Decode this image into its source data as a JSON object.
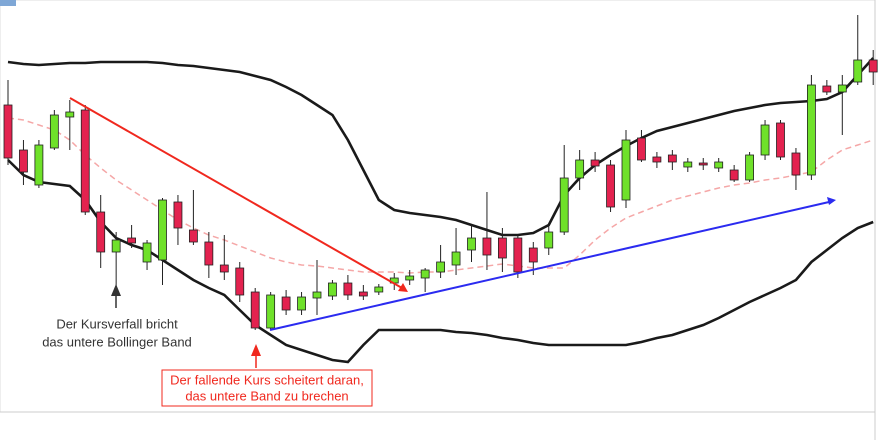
{
  "chart_data": {
    "type": "candlestick",
    "ylim": [
      0,
      430
    ],
    "open": [
      325,
      280,
      245,
      282,
      313,
      320,
      218,
      178,
      192,
      168,
      170,
      228,
      200,
      188,
      165,
      162,
      138,
      102,
      133,
      120,
      132,
      134,
      147,
      138,
      138,
      147,
      150,
      152,
      158,
      165,
      180,
      192,
      192,
      192,
      182,
      182,
      198,
      252,
      270,
      265,
      230,
      292,
      273,
      275,
      263,
      267,
      262,
      260,
      250,
      275,
      307,
      277,
      255,
      344,
      338,
      348,
      370
    ],
    "high": [
      350,
      290,
      290,
      320,
      330,
      325,
      235,
      198,
      205,
      190,
      232,
      235,
      240,
      198,
      195,
      168,
      142,
      138,
      140,
      138,
      170,
      150,
      155,
      145,
      146,
      157,
      160,
      162,
      185,
      202,
      205,
      238,
      202,
      195,
      188,
      205,
      285,
      280,
      278,
      270,
      300,
      300,
      278,
      280,
      272,
      272,
      272,
      265,
      278,
      310,
      310,
      282,
      355,
      350,
      355,
      415,
      380
    ],
    "low": [
      265,
      245,
      242,
      280,
      280,
      215,
      162,
      140,
      182,
      160,
      145,
      185,
      185,
      152,
      150,
      128,
      100,
      100,
      115,
      115,
      115,
      130,
      130,
      130,
      135,
      140,
      145,
      138,
      152,
      155,
      168,
      160,
      158,
      152,
      155,
      175,
      195,
      240,
      258,
      218,
      222,
      268,
      262,
      260,
      258,
      260,
      258,
      248,
      248,
      270,
      270,
      240,
      250,
      335,
      295,
      345,
      345
    ],
    "close": [
      272,
      258,
      285,
      315,
      318,
      218,
      178,
      190,
      187,
      187,
      230,
      202,
      188,
      165,
      158,
      135,
      102,
      135,
      120,
      133,
      138,
      147,
      135,
      134,
      143,
      152,
      154,
      160,
      168,
      178,
      192,
      175,
      172,
      158,
      168,
      198,
      252,
      270,
      264,
      223,
      290,
      270,
      268,
      268,
      268,
      265,
      268,
      250,
      275,
      305,
      273,
      255,
      345,
      338,
      345,
      370,
      358
    ],
    "up_color": "#6fe12a",
    "down_color": "#e3224f",
    "series": [
      {
        "name": "upper",
        "color": "#1a1a1a",
        "values": [
          368,
          366,
          365,
          366,
          367,
          367,
          368,
          368,
          368,
          368,
          367,
          365,
          364,
          362,
          360,
          358,
          354,
          350,
          343,
          335,
          325,
          315,
          290,
          260,
          230,
          220,
          217,
          215,
          213,
          210,
          205,
          200,
          195,
          195,
          197,
          205,
          235,
          252,
          265,
          275,
          284,
          292,
          299,
          303,
          307,
          311,
          315,
          319,
          322,
          325,
          327,
          328,
          329,
          331,
          338,
          355,
          372
        ]
      },
      {
        "name": "middle",
        "color": "#f5a7a7",
        "values": [
          312,
          310,
          305,
          300,
          290,
          275,
          262,
          250,
          240,
          230,
          220,
          210,
          202,
          195,
          190,
          184,
          178,
          172,
          168,
          165,
          164,
          162,
          160,
          158,
          158,
          158,
          157,
          158,
          158,
          160,
          162,
          164,
          166,
          164,
          162,
          162,
          162,
          175,
          190,
          202,
          212,
          218,
          224,
          230,
          234,
          238,
          242,
          245,
          247,
          250,
          252,
          255,
          258,
          270,
          280,
          285,
          290
        ]
      },
      {
        "name": "lower",
        "color": "#1a1a1a",
        "values": [
          270,
          255,
          248,
          246,
          244,
          230,
          208,
          192,
          185,
          180,
          170,
          160,
          150,
          142,
          135,
          120,
          105,
          95,
          85,
          80,
          75,
          70,
          68,
          85,
          100,
          100,
          100,
          100,
          100,
          98,
          97,
          95,
          92,
          90,
          87,
          85,
          85,
          85,
          85,
          85,
          85,
          88,
          92,
          95,
          100,
          105,
          112,
          120,
          128,
          135,
          142,
          150,
          168,
          180,
          192,
          202,
          208
        ]
      }
    ],
    "annotations": [
      {
        "lines": [
          "Der Kursverfall bricht",
          "das untere Bollinger Band"
        ]
      },
      {
        "lines": [
          "Der fallende Kurs scheitert daran,",
          "das untere Band zu brechen"
        ]
      }
    ]
  }
}
